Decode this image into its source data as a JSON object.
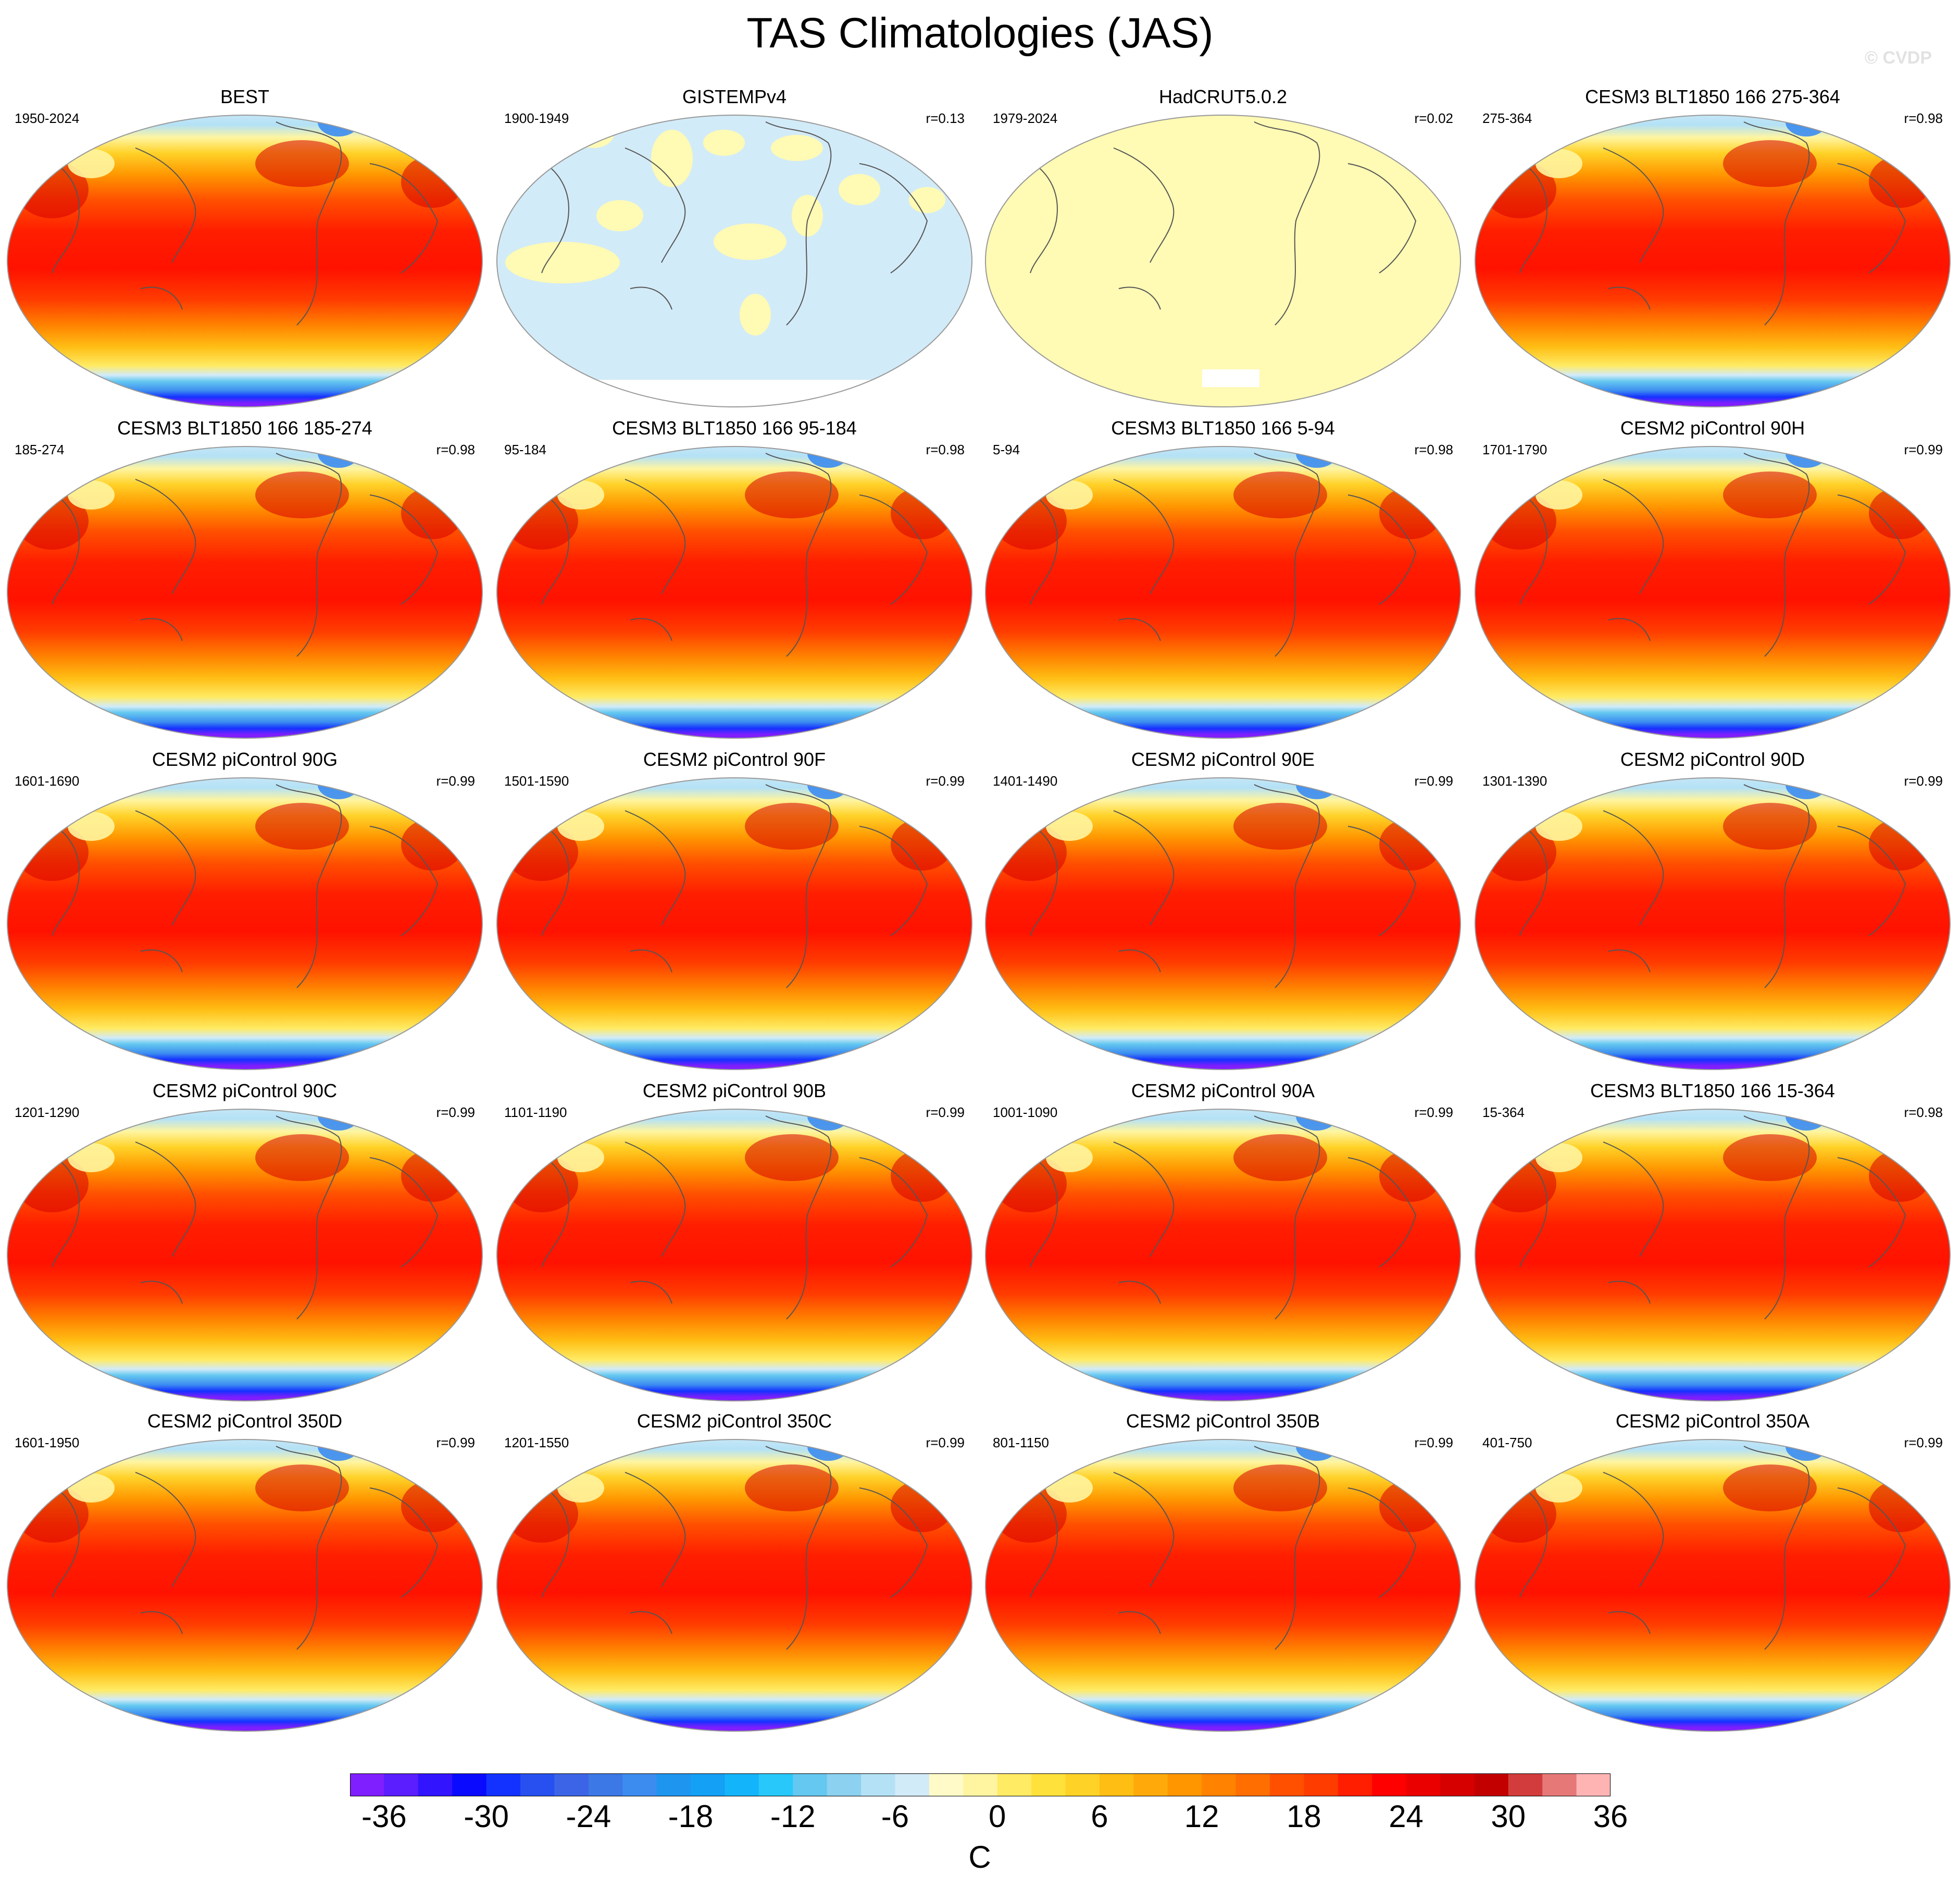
{
  "figure": {
    "title": "TAS Climatologies (JAS)",
    "watermark": "© CVDP",
    "units": "C"
  },
  "colorbar": {
    "colors": [
      "#7f1eff",
      "#5a1eff",
      "#3214ff",
      "#0a0aff",
      "#1432ff",
      "#2850f0",
      "#3c64e6",
      "#3c78e6",
      "#3c8cf0",
      "#1e96f0",
      "#14a0f5",
      "#14b4fa",
      "#28c8fa",
      "#64c8f0",
      "#8cd2f0",
      "#b4e1f5",
      "#d2ebf8",
      "#fffac8",
      "#fff5a0",
      "#ffeb64",
      "#ffe13c",
      "#ffd228",
      "#ffbe14",
      "#ffaa0a",
      "#ff9600",
      "#ff8200",
      "#ff6e00",
      "#ff5000",
      "#ff3c00",
      "#ff1e00",
      "#ff0000",
      "#eb0000",
      "#d70000",
      "#c30000",
      "#d23c3c",
      "#e67878",
      "#ffb4b4"
    ],
    "tick_labels": [
      "-36",
      "-30",
      "-24",
      "-18",
      "-12",
      "-6",
      "0",
      "6",
      "12",
      "18",
      "24",
      "30",
      "36"
    ]
  },
  "panels": [
    {
      "title": "BEST",
      "years": "1950-2024",
      "corr": "",
      "field": "warm"
    },
    {
      "title": "GISTEMPv4",
      "years": "1900-1949",
      "corr": "r=0.13",
      "field": "gistemp"
    },
    {
      "title": "HadCRUT5.0.2",
      "years": "1979-2024",
      "corr": "r=0.02",
      "field": "hadcrut"
    },
    {
      "title": "CESM3 BLT1850 166 275-364",
      "years": "275-364",
      "corr": "r=0.98",
      "field": "warm"
    },
    {
      "title": "CESM3 BLT1850 166 185-274",
      "years": "185-274",
      "corr": "r=0.98",
      "field": "warm"
    },
    {
      "title": "CESM3 BLT1850 166 95-184",
      "years": "95-184",
      "corr": "r=0.98",
      "field": "warm"
    },
    {
      "title": "CESM3 BLT1850 166 5-94",
      "years": "5-94",
      "corr": "r=0.98",
      "field": "warm"
    },
    {
      "title": "CESM2 piControl 90H",
      "years": "1701-1790",
      "corr": "r=0.99",
      "field": "warm"
    },
    {
      "title": "CESM2 piControl 90G",
      "years": "1601-1690",
      "corr": "r=0.99",
      "field": "warm"
    },
    {
      "title": "CESM2 piControl 90F",
      "years": "1501-1590",
      "corr": "r=0.99",
      "field": "warm"
    },
    {
      "title": "CESM2 piControl 90E",
      "years": "1401-1490",
      "corr": "r=0.99",
      "field": "warm"
    },
    {
      "title": "CESM2 piControl 90D",
      "years": "1301-1390",
      "corr": "r=0.99",
      "field": "warm"
    },
    {
      "title": "CESM2 piControl 90C",
      "years": "1201-1290",
      "corr": "r=0.99",
      "field": "warm"
    },
    {
      "title": "CESM2 piControl 90B",
      "years": "1101-1190",
      "corr": "r=0.99",
      "field": "warm"
    },
    {
      "title": "CESM2 piControl 90A",
      "years": "1001-1090",
      "corr": "r=0.99",
      "field": "warm"
    },
    {
      "title": "CESM3 BLT1850 166 15-364",
      "years": "15-364",
      "corr": "r=0.98",
      "field": "warm"
    },
    {
      "title": "CESM2 piControl 350D",
      "years": "1601-1950",
      "corr": "r=0.99",
      "field": "warm"
    },
    {
      "title": "CESM2 piControl 350C",
      "years": "1201-1550",
      "corr": "r=0.99",
      "field": "warm"
    },
    {
      "title": "CESM2 piControl 350B",
      "years": "801-1150",
      "corr": "r=0.99",
      "field": "warm"
    },
    {
      "title": "CESM2 piControl 350A",
      "years": "401-750",
      "corr": "r=0.99",
      "field": "warm"
    }
  ]
}
